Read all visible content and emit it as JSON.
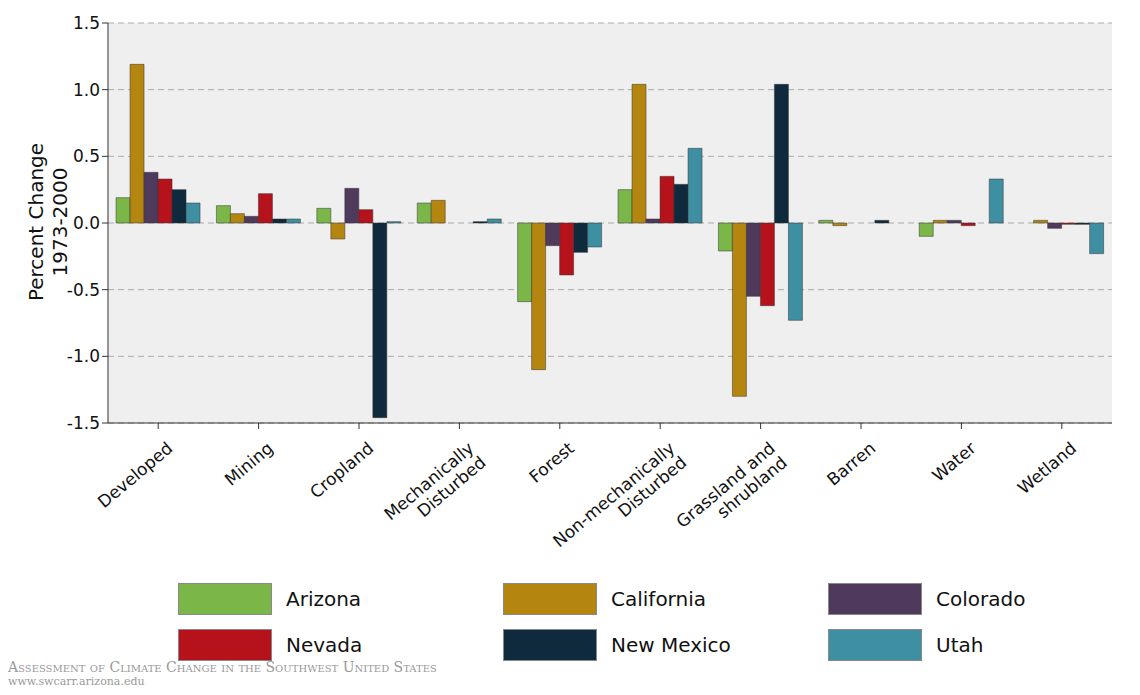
{
  "chart_data": {
    "type": "bar",
    "y_label": [
      "Percent Change",
      "1973-2000"
    ],
    "categories": [
      "Developed",
      "Mining",
      "Cropland",
      "Mechanically Disturbed",
      "Forest",
      "Non-mechanically Disturbed",
      "Grassland and shrubland",
      "Barren",
      "Water",
      "Wetland"
    ],
    "series": [
      {
        "name": "Arizona",
        "color": "#7ab648",
        "values": [
          0.19,
          0.13,
          0.11,
          0.15,
          -0.59,
          0.25,
          -0.21,
          0.02,
          -0.1,
          0.0
        ]
      },
      {
        "name": "California",
        "color": "#b5860f",
        "values": [
          1.19,
          0.07,
          -0.12,
          0.17,
          -1.1,
          1.04,
          -1.3,
          -0.02,
          0.02,
          0.02
        ]
      },
      {
        "name": "Colorado",
        "color": "#4f3a5c",
        "values": [
          0.38,
          0.05,
          0.26,
          0.0,
          -0.17,
          0.03,
          -0.55,
          0.0,
          0.02,
          -0.04
        ]
      },
      {
        "name": "Nevada",
        "color": "#b5121b",
        "values": [
          0.33,
          0.22,
          0.1,
          0.0,
          -0.39,
          0.35,
          -0.62,
          0.0,
          -0.02,
          -0.01
        ]
      },
      {
        "name": "New Mexico",
        "color": "#0f2a3d",
        "values": [
          0.25,
          0.03,
          -1.46,
          0.01,
          -0.22,
          0.29,
          1.04,
          0.02,
          0.0,
          -0.01
        ]
      },
      {
        "name": "Utah",
        "color": "#3f8fa3",
        "values": [
          0.15,
          0.03,
          0.01,
          0.03,
          -0.18,
          0.56,
          -0.73,
          0.0,
          0.33,
          -0.23
        ]
      }
    ],
    "ylim": [
      -1.5,
      1.5
    ],
    "yticks": [
      -1.5,
      {
        "value": -1.0,
        "label": "-1.0"
      },
      -0.5,
      {
        "value": 0.0,
        "label": "0.0"
      },
      0.5,
      {
        "value": 1.0,
        "label": "1.0"
      },
      1.5
    ],
    "grid": true,
    "legend": "bottom",
    "annotations": [
      "Assessment of Climate Change in the Southwest United States",
      "www.swcarr.arizona.edu"
    ]
  }
}
